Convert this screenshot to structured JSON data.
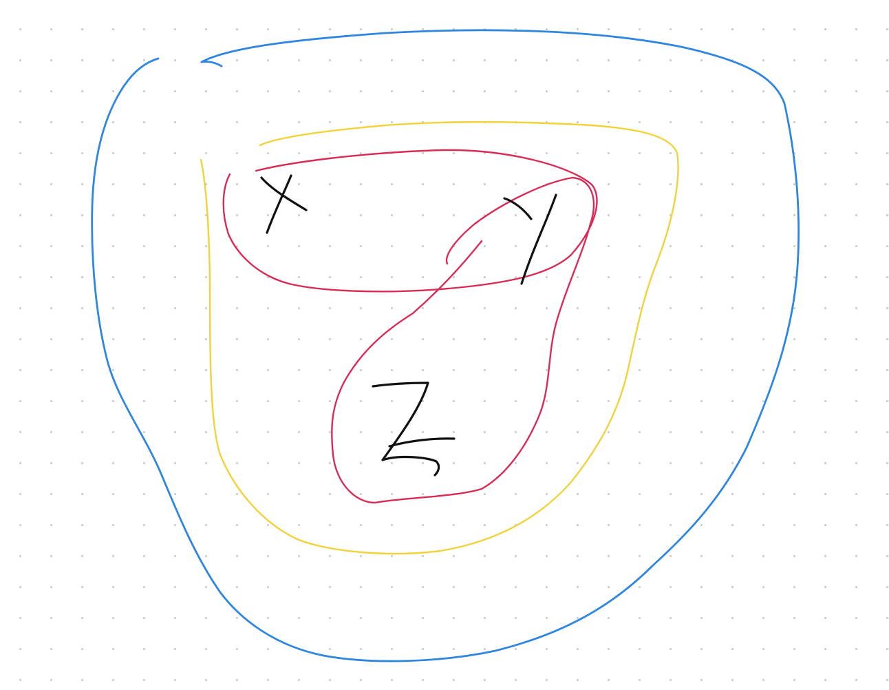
{
  "canvas": {
    "background": "#ffffff",
    "grid": "dotted",
    "grid_dot_color": "#c9c9c9"
  },
  "strokes": {
    "outer_loop_color": "#2f86e0",
    "middle_loop_color": "#f2d23a",
    "inner_loop_color": "#d92b55",
    "letter_color": "#111111"
  },
  "letters": {
    "x": "X",
    "y": "Y",
    "z": "Z"
  }
}
